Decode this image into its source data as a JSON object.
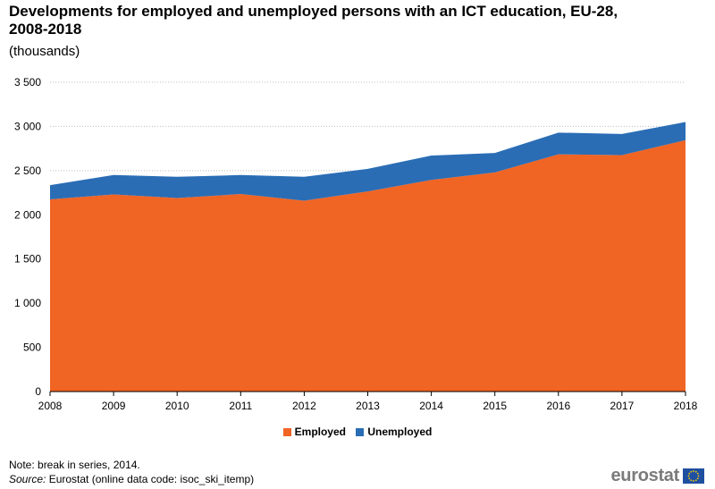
{
  "header": {
    "title": "Developments for employed and unemployed persons with an ICT education, EU-28, 2008-2018",
    "subtitle": "(thousands)"
  },
  "chart_data": {
    "type": "area",
    "stacked": true,
    "x": [
      "2008",
      "2009",
      "2010",
      "2011",
      "2012",
      "2013",
      "2014",
      "2015",
      "2016",
      "2017",
      "2018"
    ],
    "series": [
      {
        "name": "Employed",
        "color": "#F06424",
        "values": [
          2175,
          2230,
          2190,
          2235,
          2160,
          2265,
          2395,
          2480,
          2685,
          2675,
          2845
        ]
      },
      {
        "name": "Unemployed",
        "color": "#2A6DB5",
        "values": [
          160,
          220,
          240,
          215,
          270,
          255,
          275,
          220,
          245,
          240,
          205
        ]
      }
    ],
    "ylim": [
      0,
      3500
    ],
    "yticks": [
      0,
      500,
      1000,
      1500,
      2000,
      2500,
      3000,
      3500
    ],
    "ytick_labels": [
      "0",
      "500",
      "1 000",
      "1 500",
      "2 000",
      "2 500",
      "3 000",
      "3 500"
    ],
    "grid": true,
    "legend_position": "bottom-center"
  },
  "footer": {
    "note": "Note: break in series, 2014.",
    "source_label": "Source:",
    "source_text": " Eurostat (online data code: isoc_ski_itemp)",
    "logo_text": "eurostat"
  },
  "colors": {
    "employed": "#F06424",
    "unemployed": "#2A6DB5",
    "logo_flag": "#1F4FA0",
    "logo_stars": "#FFD200"
  }
}
